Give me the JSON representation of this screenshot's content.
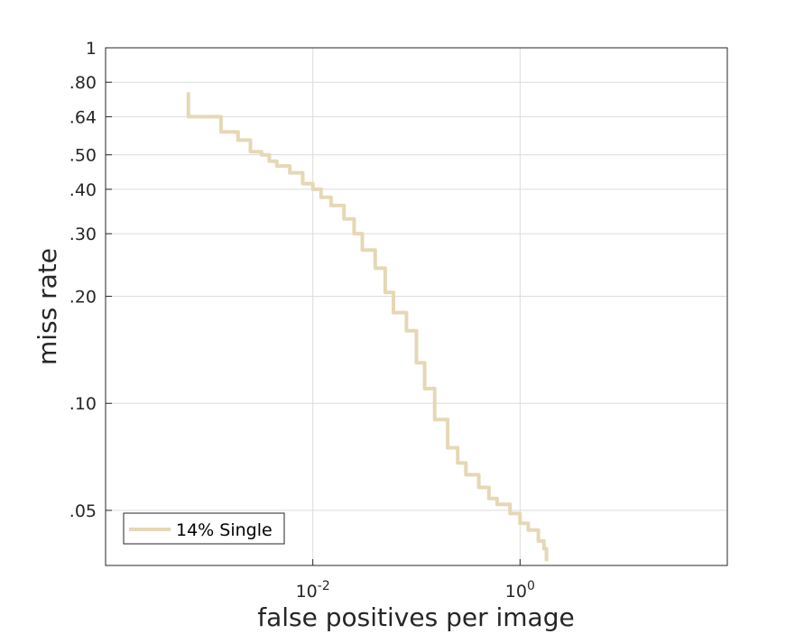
{
  "chart_data": {
    "type": "line",
    "xlabel": "false positives per image",
    "ylabel": "miss rate",
    "x_scale": "log",
    "y_scale": "log",
    "xlim": [
      0.0001,
      100
    ],
    "ylim": [
      0.035,
      1
    ],
    "x_ticks": [
      {
        "value": 0.01,
        "base": "10",
        "exp": "-2"
      },
      {
        "value": 1,
        "base": "10",
        "exp": "0"
      }
    ],
    "y_ticks": [
      {
        "value": 1,
        "label": "1"
      },
      {
        "value": 0.8,
        "label": ".80"
      },
      {
        "value": 0.64,
        "label": ".64"
      },
      {
        "value": 0.5,
        "label": ".50"
      },
      {
        "value": 0.4,
        "label": ".40"
      },
      {
        "value": 0.3,
        "label": ".30"
      },
      {
        "value": 0.2,
        "label": ".20"
      },
      {
        "value": 0.1,
        "label": ".10"
      },
      {
        "value": 0.05,
        "label": ".05"
      }
    ],
    "grid": true,
    "legend_position": "bottom-left",
    "series": [
      {
        "name": "14% Single",
        "color": "#e5d8b5",
        "step": true,
        "x": [
          0.00063,
          0.00063,
          0.0013,
          0.0019,
          0.0025,
          0.0032,
          0.0038,
          0.0045,
          0.006,
          0.008,
          0.01,
          0.012,
          0.015,
          0.02,
          0.025,
          0.03,
          0.04,
          0.05,
          0.06,
          0.08,
          0.1,
          0.12,
          0.15,
          0.2,
          0.25,
          0.3,
          0.4,
          0.5,
          0.6,
          0.8,
          1.0,
          1.2,
          1.5,
          1.7,
          1.8
        ],
        "y": [
          0.75,
          0.64,
          0.58,
          0.55,
          0.51,
          0.5,
          0.48,
          0.465,
          0.445,
          0.415,
          0.4,
          0.38,
          0.36,
          0.33,
          0.3,
          0.27,
          0.24,
          0.205,
          0.18,
          0.16,
          0.13,
          0.11,
          0.09,
          0.075,
          0.068,
          0.063,
          0.058,
          0.054,
          0.052,
          0.049,
          0.046,
          0.044,
          0.041,
          0.039,
          0.036
        ]
      }
    ]
  }
}
